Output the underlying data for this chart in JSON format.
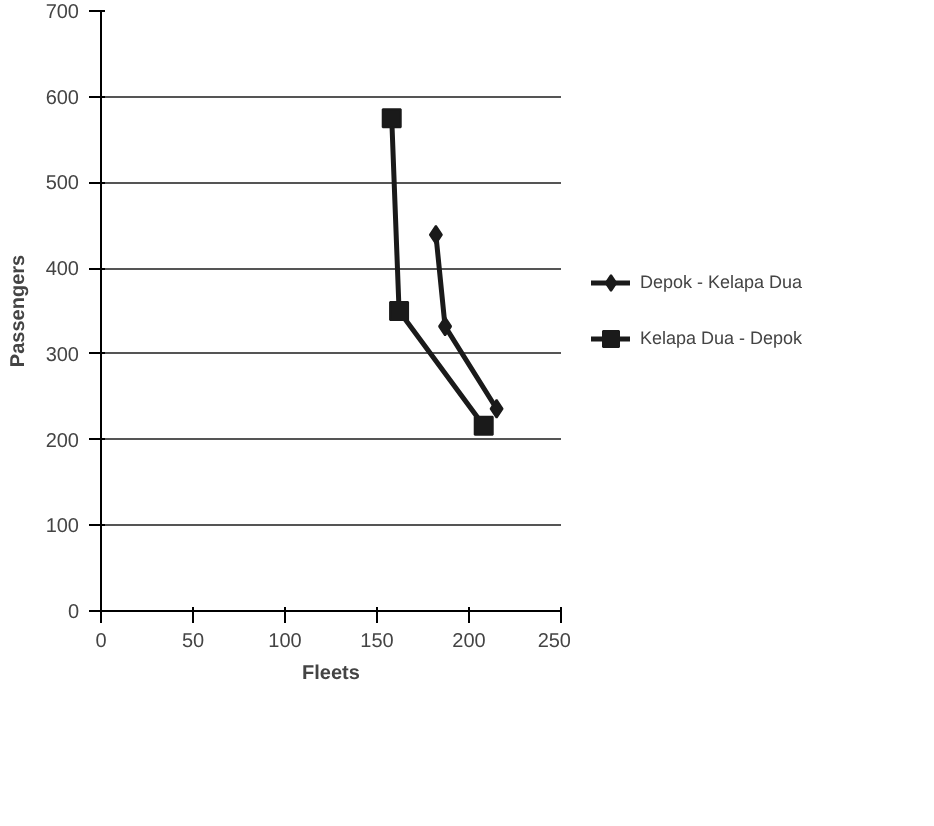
{
  "chart_data": {
    "type": "line",
    "xlabel": "Fleets",
    "ylabel": "Passengers",
    "xlim": [
      0,
      250
    ],
    "ylim": [
      0,
      700
    ],
    "xticks": [
      0,
      50,
      100,
      150,
      200,
      250
    ],
    "yticks": [
      0,
      100,
      200,
      300,
      400,
      500,
      600,
      700
    ],
    "grid": "y",
    "legend": "right",
    "line_style": "solid",
    "series": [
      {
        "name": "Depok - Kelapa Dua",
        "color": "#1a1a1a",
        "marker": "diamond",
        "x": [
          182,
          187,
          215
        ],
        "values": [
          439,
          332,
          236
        ]
      },
      {
        "name": "Kelapa Dua - Depok",
        "color": "#1a1a1a",
        "marker": "square",
        "x": [
          158,
          162,
          208
        ],
        "values": [
          575,
          350,
          216
        ]
      }
    ]
  }
}
